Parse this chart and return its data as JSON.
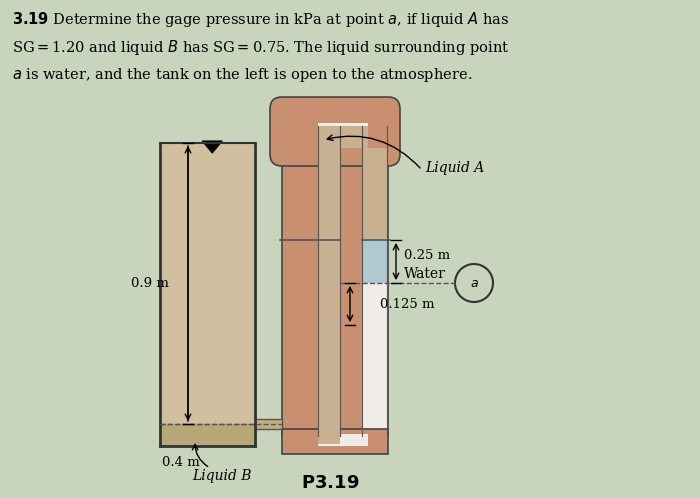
{
  "bg_color": "#c8d4bc",
  "tank_fill_color": "#c8b898",
  "tank_border_color": "#333333",
  "tube_pipe_color": "#c89070",
  "tube_inner_color": "#e8e0d8",
  "water_color": "#b0c8d0",
  "liquid_b_color": "#b8a870",
  "pipe_connect_color": "#c8b090",
  "dim_09": "0.9 m",
  "dim_04": "0.4 m",
  "dim_025": "0.25 m",
  "dim_0125": "0.125 m",
  "label_liquidA": "Liquid A",
  "label_liquidB": "Liquid B",
  "label_water": "Water",
  "label_a": "a",
  "label_P319": "P3.19"
}
